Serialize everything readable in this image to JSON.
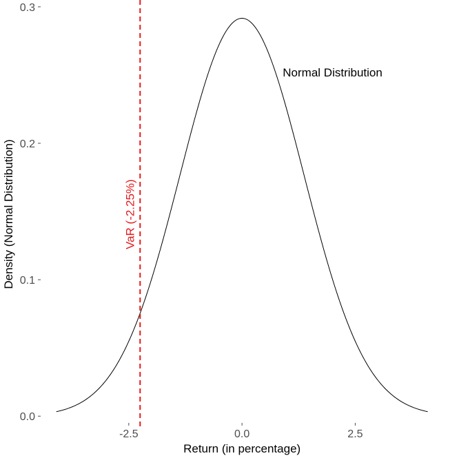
{
  "chart_data": {
    "type": "line",
    "title": "",
    "xlabel": "Return (in percentage)",
    "ylabel": "Density (Normal Distribution)",
    "xlim": [
      -4.4,
      4.7
    ],
    "ylim": [
      -0.013,
      0.305
    ],
    "x_ticks": [
      -2.5,
      0.0,
      2.5
    ],
    "x_tick_labels": [
      "-2.5",
      "0.0",
      "2.5"
    ],
    "y_ticks": [
      0.0,
      0.1,
      0.2,
      0.3
    ],
    "y_tick_labels": [
      "0.0",
      "0.1",
      "0.2",
      "0.3"
    ],
    "grid": false,
    "legend": "none",
    "series": [
      {
        "distribution": "normal",
        "mean": 0.0,
        "sd": 1.368,
        "x_range": [
          -4.1,
          4.1
        ],
        "color": "#000000"
      }
    ],
    "vline": {
      "x": -2.25,
      "color": "#e41a1c",
      "style": "dashed",
      "label": "VaR (-2.25%)"
    },
    "annotations": [
      {
        "text": "Normal Distribution",
        "x": 0.9,
        "y": 0.249,
        "color": "#000000"
      }
    ]
  }
}
